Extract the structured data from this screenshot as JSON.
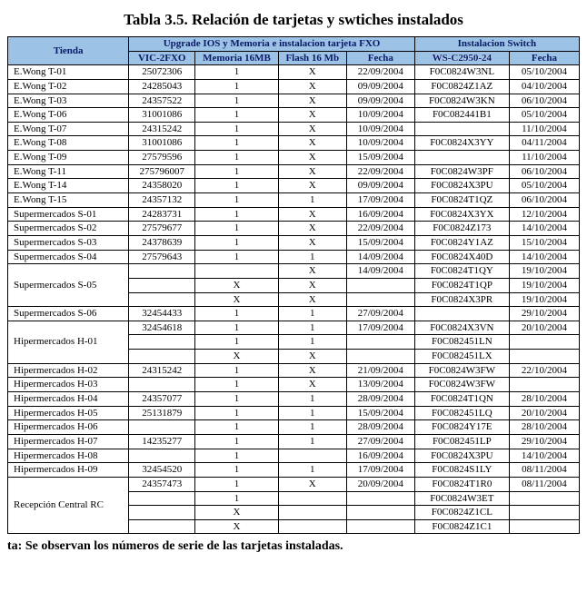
{
  "title": "Tabla 3.5. Relación de tarjetas y swtiches instalados",
  "footer_note": "ta: Se observan los números de serie de las tarjetas instaladas.",
  "colors": {
    "header_bg": "#9cc2e5",
    "header_fg": "#0a1a66",
    "border": "#000000",
    "background": "#ffffff"
  },
  "columns": [
    {
      "label": "Tienda",
      "group": null
    },
    {
      "label": "VIC-2FXO",
      "group": "Upgrade IOS y Memoria e instalacion tarjeta FXO"
    },
    {
      "label": "Memoria 16MB",
      "group": "Upgrade IOS y Memoria e instalacion tarjeta FXO"
    },
    {
      "label": "Flash 16 Mb",
      "group": "Upgrade IOS y Memoria e instalacion tarjeta FXO"
    },
    {
      "label": "Fecha",
      "group": "Upgrade IOS y Memoria e instalacion tarjeta FXO"
    },
    {
      "label": "WS-C2950-24",
      "group": "Instalacion Switch"
    },
    {
      "label": "Fecha",
      "group": "Instalacion Switch"
    }
  ],
  "header_groups": [
    {
      "label": "Tienda",
      "colspan": 1,
      "rowspan": 2
    },
    {
      "label": "Upgrade IOS y Memoria e instalacion tarjeta FXO",
      "colspan": 4,
      "rowspan": 1
    },
    {
      "label": "Instalacion Switch",
      "colspan": 2,
      "rowspan": 1
    }
  ],
  "sub_headers": [
    "VIC-2FXO",
    "Memoria 16MB",
    "Flash 16 Mb",
    "Fecha",
    "WS-C2950-24",
    "Fecha"
  ],
  "rows": [
    {
      "tienda": "E.Wong  T-01",
      "vic": "25072306",
      "mem": "1",
      "flash": "X",
      "fecha1": "22/09/2004",
      "ws": "F0C0824W3NL",
      "fecha2": "05/10/2004"
    },
    {
      "tienda": "E.Wong  T-02",
      "vic": "24285043",
      "mem": "1",
      "flash": "X",
      "fecha1": "09/09/2004",
      "ws": "F0C0824Z1AZ",
      "fecha2": "04/10/2004"
    },
    {
      "tienda": "E.Wong  T-03",
      "vic": "24357522",
      "mem": "1",
      "flash": "X",
      "fecha1": "09/09/2004",
      "ws": "F0C0824W3KN",
      "fecha2": "06/10/2004"
    },
    {
      "tienda": "E.Wong  T-06",
      "vic": "31001086",
      "mem": "1",
      "flash": "X",
      "fecha1": "10/09/2004",
      "ws": "F0C082441B1",
      "fecha2": "05/10/2004"
    },
    {
      "tienda": "E.Wong  T-07",
      "vic": "24315242",
      "mem": "1",
      "flash": "X",
      "fecha1": "10/09/2004",
      "ws": "",
      "fecha2": "11/10/2004"
    },
    {
      "tienda": "E.Wong  T-08",
      "vic": "31001086",
      "mem": "1",
      "flash": "X",
      "fecha1": "10/09/2004",
      "ws": "F0C0824X3YY",
      "fecha2": "04/11/2004"
    },
    {
      "tienda": "E.Wong  T-09",
      "vic": "27579596",
      "mem": "1",
      "flash": "X",
      "fecha1": "15/09/2004",
      "ws": "",
      "fecha2": "11/10/2004"
    },
    {
      "tienda": "E.Wong  T-11",
      "vic": "275796007",
      "mem": "1",
      "flash": "X",
      "fecha1": "22/09/2004",
      "ws": "F0C0824W3PF",
      "fecha2": "06/10/2004"
    },
    {
      "tienda": "E.Wong  T-14",
      "vic": "24358020",
      "mem": "1",
      "flash": "X",
      "fecha1": "09/09/2004",
      "ws": "F0C0824X3PU",
      "fecha2": "05/10/2004"
    },
    {
      "tienda": "E.Wong  T-15",
      "vic": "24357132",
      "mem": "1",
      "flash": "1",
      "fecha1": "17/09/2004",
      "ws": "F0C0824T1QZ",
      "fecha2": "06/10/2004"
    },
    {
      "tienda": "Supermercados S-01",
      "vic": "24283731",
      "mem": "1",
      "flash": "X",
      "fecha1": "16/09/2004",
      "ws": "F0C0824X3YX",
      "fecha2": "12/10/2004"
    },
    {
      "tienda": "Supermercados S-02",
      "vic": "27579677",
      "mem": "1",
      "flash": "X",
      "fecha1": "22/09/2004",
      "ws": "F0C0824Z173",
      "fecha2": "14/10/2004"
    },
    {
      "tienda": "Supermercados S-03",
      "vic": "24378639",
      "mem": "1",
      "flash": "X",
      "fecha1": "15/09/2004",
      "ws": "F0C0824Y1AZ",
      "fecha2": "15/10/2004"
    },
    {
      "tienda": "Supermercados S-04",
      "vic": "27579643",
      "mem": "1",
      "flash": "1",
      "fecha1": "14/09/2004",
      "ws": "F0C0824X40D",
      "fecha2": "14/10/2004"
    },
    {
      "tienda_label": "Supermercados S-05",
      "rowspan": 3,
      "sub": [
        {
          "vic": "",
          "mem": "",
          "flash": "X",
          "fecha1": "14/09/2004",
          "ws": "F0C0824T1QY",
          "fecha2": "19/10/2004"
        },
        {
          "vic": "",
          "mem": "X",
          "flash": "X",
          "fecha1": "",
          "ws": "F0C0824T1QP",
          "fecha2": "19/10/2004"
        },
        {
          "vic": "",
          "mem": "X",
          "flash": "X",
          "fecha1": "",
          "ws": "F0C0824X3PR",
          "fecha2": "19/10/2004"
        }
      ]
    },
    {
      "tienda": "Supermercados S-06",
      "vic": "32454433",
      "mem": "1",
      "flash": "1",
      "fecha1": "27/09/2004",
      "ws": "",
      "fecha2": "29/10/2004"
    },
    {
      "tienda_label": "Hipermercados  H-01",
      "rowspan": 3,
      "sub": [
        {
          "vic": "32454618",
          "mem": "1",
          "flash": "1",
          "fecha1": "17/09/2004",
          "ws": "F0C0824X3VN",
          "fecha2": "20/10/2004"
        },
        {
          "vic": "",
          "mem": "1",
          "flash": "1",
          "fecha1": "",
          "ws": "F0C082451LN",
          "fecha2": ""
        },
        {
          "vic": "",
          "mem": "X",
          "flash": "X",
          "fecha1": "",
          "ws": "F0C082451LX",
          "fecha2": ""
        }
      ]
    },
    {
      "tienda": "Hipermercados  H-02",
      "vic": "24315242",
      "mem": "1",
      "flash": "X",
      "fecha1": "21/09/2004",
      "ws": "F0C0824W3FW",
      "fecha2": "22/10/2004"
    },
    {
      "tienda": "Hipermercados  H-03",
      "vic": "",
      "mem": "1",
      "flash": "X",
      "fecha1": "13/09/2004",
      "ws": "F0C0824W3FW",
      "fecha2": ""
    },
    {
      "tienda": "Hipermercados  H-04",
      "vic": "24357077",
      "mem": "1",
      "flash": "1",
      "fecha1": "28/09/2004",
      "ws": "F0C0824T1QN",
      "fecha2": "28/10/2004"
    },
    {
      "tienda": "Hipermercados  H-05",
      "vic": "25131879",
      "mem": "1",
      "flash": "1",
      "fecha1": "15/09/2004",
      "ws": "F0C082451LQ",
      "fecha2": "20/10/2004"
    },
    {
      "tienda": "Hipermercados  H-06",
      "vic": "",
      "mem": "1",
      "flash": "1",
      "fecha1": "28/09/2004",
      "ws": "F0C0824Y17E",
      "fecha2": "28/10/2004"
    },
    {
      "tienda": "Hipermercados  H-07",
      "vic": "14235277",
      "mem": "1",
      "flash": "1",
      "fecha1": "27/09/2004",
      "ws": "F0C082451LP",
      "fecha2": "29/10/2004"
    },
    {
      "tienda": "Hipermercados  H-08",
      "vic": "",
      "mem": "1",
      "flash": "",
      "fecha1": "16/09/2004",
      "ws": "F0C0824X3PU",
      "fecha2": "14/10/2004"
    },
    {
      "tienda": "Hipermercados  H-09",
      "vic": "32454520",
      "mem": "1",
      "flash": "1",
      "fecha1": "17/09/2004",
      "ws": "F0C0824S1LY",
      "fecha2": "08/11/2004"
    },
    {
      "tienda_label": "Recepción Central  RC",
      "rowspan": 4,
      "sub": [
        {
          "vic": "24357473",
          "mem": "1",
          "flash": "X",
          "fecha1": "20/09/2004",
          "ws": "F0C0824T1R0",
          "fecha2": "08/11/2004"
        },
        {
          "vic": "",
          "mem": "1",
          "flash": "",
          "fecha1": "",
          "ws": "F0C0824W3ET",
          "fecha2": ""
        },
        {
          "vic": "",
          "mem": "X",
          "flash": "",
          "fecha1": "",
          "ws": "F0C0824Z1CL",
          "fecha2": ""
        },
        {
          "vic": "",
          "mem": "X",
          "flash": "",
          "fecha1": "",
          "ws": "F0C0824Z1C1",
          "fecha2": ""
        }
      ]
    }
  ]
}
